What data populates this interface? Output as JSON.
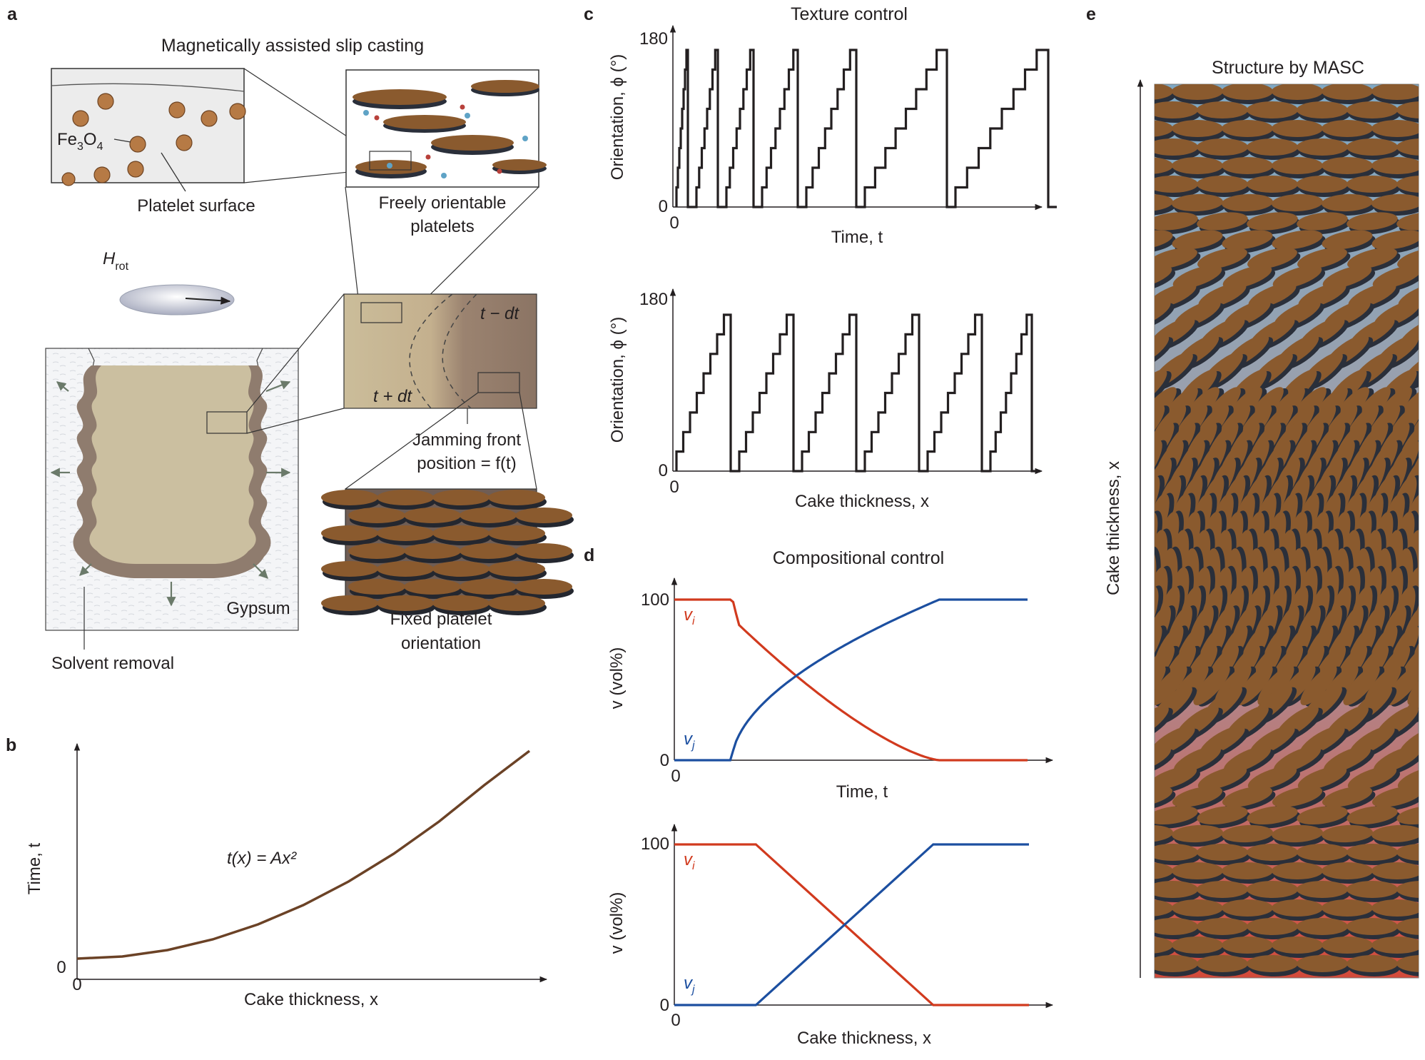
{
  "panels": {
    "a": {
      "letter": "a",
      "title": "Magnetically assisted slip casting",
      "fe_prefix": "Fe",
      "fe_sub1": "3",
      "fe_mid": "O",
      "fe_sub2": "4",
      "platelet_surface": "Platelet surface",
      "freely_line1": "Freely orientable",
      "freely_line2": "platelets",
      "h_main": "H",
      "h_sub": "rot",
      "t_minus": "t − dt",
      "t_plus": "t + dt",
      "jam_line1": "Jamming front",
      "jam_line2": "position = f(t)",
      "gypsum": "Gypsum",
      "solvent": "Solvent removal",
      "fixed_line1": "Fixed platelet",
      "fixed_line2": "orientation"
    },
    "b": {
      "letter": "b",
      "ylabel": "Time, t",
      "xlabel": "Cake thickness, x",
      "equation": "t(x) = Ax²",
      "y0": "0",
      "x0": "0"
    },
    "c": {
      "letter": "c",
      "title": "Texture control",
      "top_ylabel": "Orientation, ϕ (°)",
      "top_xlabel": "Time, t",
      "bottom_ylabel": "Orientation, ϕ (°)",
      "bottom_xlabel": "Cake thickness, x",
      "tick_180": "180",
      "tick_0": "0",
      "x0": "0"
    },
    "d": {
      "letter": "d",
      "title": "Compositional control",
      "top_ylabel": "v (vol%)",
      "top_xlabel": "Time, t",
      "bottom_ylabel": "v (vol%)",
      "bottom_xlabel": "Cake thickness, x",
      "tick_100": "100",
      "tick_0": "0",
      "x0": "0",
      "vi_main": "v",
      "vi_sub": "i",
      "vj_main": "v",
      "vj_sub": "j"
    },
    "e": {
      "letter": "e",
      "title": "Structure by MASC",
      "ylabel": "Cake thickness, x"
    }
  },
  "colors": {
    "red": "#d13a1e",
    "blue": "#1c4fa0",
    "brown_curve": "#6b4226",
    "platelet": "#8a5a2e",
    "platelet_shadow": "#2a2f3a"
  },
  "chart_data": [
    {
      "type": "line",
      "panel": "b",
      "series": [
        {
          "x": [
            0,
            0.1,
            0.2,
            0.3,
            0.4,
            0.5,
            0.6,
            0.7,
            0.8,
            0.9,
            1.0
          ],
          "y": [
            0.03,
            0.04,
            0.07,
            0.12,
            0.19,
            0.28,
            0.39,
            0.52,
            0.67,
            0.84,
            1.0
          ]
        }
      ],
      "xlabel": "Cake thickness, x",
      "ylabel": "Time, t"
    },
    {
      "type": "line",
      "panel": "c-top",
      "description_of_shape": "staircase sawtooth, period increasing with time",
      "ylim": [
        0,
        180
      ],
      "xlabel": "Time, t",
      "ylabel": "Orientation, ϕ (°)"
    },
    {
      "type": "line",
      "panel": "c-bottom",
      "description_of_shape": "staircase sawtooth, constant period",
      "ylim": [
        0,
        180
      ],
      "xlabel": "Cake thickness, x",
      "ylabel": "Orientation, ϕ (°)"
    },
    {
      "type": "line",
      "panel": "d-top",
      "ylim": [
        0,
        100
      ],
      "series": [
        {
          "name": "v_i",
          "x": [
            0,
            0.17,
            0.19,
            0.3,
            0.5,
            0.75,
            1.0
          ],
          "y": [
            100,
            100,
            88,
            58,
            33,
            0,
            0
          ]
        },
        {
          "name": "v_j",
          "x": [
            0,
            0.16,
            0.17,
            0.3,
            0.5,
            0.75,
            1.0
          ],
          "y": [
            0,
            0,
            10,
            50,
            77,
            100,
            100
          ]
        }
      ],
      "xlabel": "Time, t",
      "ylabel": "v (vol%)"
    },
    {
      "type": "line",
      "panel": "d-bottom",
      "ylim": [
        0,
        100
      ],
      "series": [
        {
          "name": "v_i",
          "x": [
            0,
            0.23,
            0.73,
            1.0
          ],
          "y": [
            100,
            100,
            0,
            0
          ]
        },
        {
          "name": "v_j",
          "x": [
            0,
            0.23,
            0.73,
            1.0
          ],
          "y": [
            0,
            0,
            100,
            100
          ]
        }
      ],
      "xlabel": "Cake thickness, x",
      "ylabel": "v (vol%)"
    }
  ]
}
